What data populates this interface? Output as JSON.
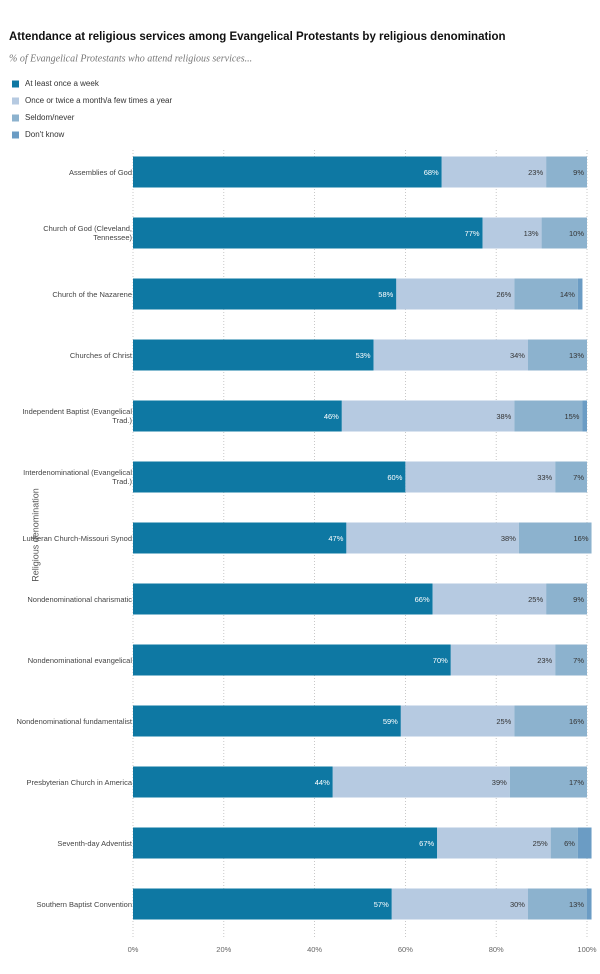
{
  "chart_data": {
    "type": "stacked-bar-horizontal",
    "title": "Attendance at religious services among Evangelical Protestants by religious denomination",
    "subtitle": "% of Evangelical Protestants who attend religious services...",
    "y_axis_label": "Religious denomination",
    "categories": [
      "Assemblies of God",
      "Church of God (Cleveland, Tennessee)",
      "Church of the Nazarene",
      "Churches of Christ",
      "Independent Baptist (Evangelical Trad.)",
      "Interdenominational (Evangelical Trad.)",
      "Lutheran Church-Missouri Synod",
      "Nondenominational charismatic",
      "Nondenominational evangelical",
      "Nondenominational fundamentalist",
      "Presbyterian Church in America",
      "Seventh-day Adventist",
      "Southern Baptist Convention"
    ],
    "series": [
      {
        "name": "At least once a week",
        "color": "#0e78a3",
        "values": [
          68,
          77,
          58,
          53,
          46,
          60,
          47,
          66,
          70,
          59,
          44,
          67,
          57
        ],
        "value_labels": [
          "68%",
          "77%",
          "58%",
          "53%",
          "46%",
          "60%",
          "47%",
          "66%",
          "70%",
          "59%",
          "44%",
          "67%",
          "57%"
        ]
      },
      {
        "name": "Once or twice a month/a few times a year",
        "color": "#b6cae1",
        "values": [
          23,
          13,
          26,
          34,
          38,
          33,
          38,
          25,
          23,
          25,
          39,
          25,
          30
        ],
        "value_labels": [
          "23%",
          "13%",
          "26%",
          "34%",
          "38%",
          "33%",
          "38%",
          "25%",
          "23%",
          "25%",
          "39%",
          "25%",
          "30%"
        ]
      },
      {
        "name": "Seldom/never",
        "color": "#8cb2ce",
        "values": [
          9,
          10,
          14,
          13,
          15,
          7,
          16,
          9,
          7,
          16,
          17,
          6,
          13
        ],
        "value_labels": [
          "9%",
          "10%",
          "14%",
          "13%",
          "15%",
          "7%",
          "16%",
          "9%",
          "7%",
          "16%",
          "17%",
          "6%",
          "13%"
        ]
      },
      {
        "name": "Don't know",
        "color": "#6b9cc4",
        "values": [
          0,
          0,
          1,
          0,
          1,
          0,
          0,
          0,
          0,
          0,
          0,
          3,
          1
        ]
      }
    ],
    "xlim": [
      0,
      100
    ],
    "xticks": [
      {
        "value": 0,
        "label": "0%"
      },
      {
        "value": 20,
        "label": "20%"
      },
      {
        "value": 40,
        "label": "40%"
      },
      {
        "value": 60,
        "label": "60%"
      },
      {
        "value": 80,
        "label": "80%"
      },
      {
        "value": 100,
        "label": "100%"
      }
    ],
    "grid": true
  }
}
